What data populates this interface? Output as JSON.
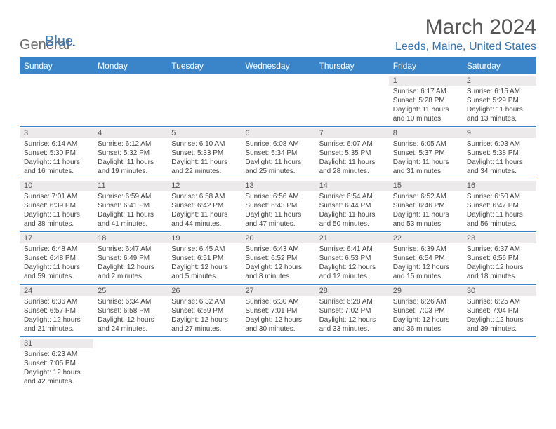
{
  "brand": {
    "general": "General",
    "blue": "Blue"
  },
  "title": "March 2024",
  "location": "Leeds, Maine, United States",
  "colors": {
    "header_bg": "#3a85c9",
    "header_text": "#ffffff",
    "accent": "#3474ad",
    "day_bg": "#eceaea",
    "text": "#444444"
  },
  "weekdays": [
    "Sunday",
    "Monday",
    "Tuesday",
    "Wednesday",
    "Thursday",
    "Friday",
    "Saturday"
  ],
  "weeks": [
    [
      null,
      null,
      null,
      null,
      null,
      {
        "n": "1",
        "sr": "6:17 AM",
        "ss": "5:28 PM",
        "dl": "11 hours and 10 minutes."
      },
      {
        "n": "2",
        "sr": "6:15 AM",
        "ss": "5:29 PM",
        "dl": "11 hours and 13 minutes."
      }
    ],
    [
      {
        "n": "3",
        "sr": "6:14 AM",
        "ss": "5:30 PM",
        "dl": "11 hours and 16 minutes."
      },
      {
        "n": "4",
        "sr": "6:12 AM",
        "ss": "5:32 PM",
        "dl": "11 hours and 19 minutes."
      },
      {
        "n": "5",
        "sr": "6:10 AM",
        "ss": "5:33 PM",
        "dl": "11 hours and 22 minutes."
      },
      {
        "n": "6",
        "sr": "6:08 AM",
        "ss": "5:34 PM",
        "dl": "11 hours and 25 minutes."
      },
      {
        "n": "7",
        "sr": "6:07 AM",
        "ss": "5:35 PM",
        "dl": "11 hours and 28 minutes."
      },
      {
        "n": "8",
        "sr": "6:05 AM",
        "ss": "5:37 PM",
        "dl": "11 hours and 31 minutes."
      },
      {
        "n": "9",
        "sr": "6:03 AM",
        "ss": "5:38 PM",
        "dl": "11 hours and 34 minutes."
      }
    ],
    [
      {
        "n": "10",
        "sr": "7:01 AM",
        "ss": "6:39 PM",
        "dl": "11 hours and 38 minutes."
      },
      {
        "n": "11",
        "sr": "6:59 AM",
        "ss": "6:41 PM",
        "dl": "11 hours and 41 minutes."
      },
      {
        "n": "12",
        "sr": "6:58 AM",
        "ss": "6:42 PM",
        "dl": "11 hours and 44 minutes."
      },
      {
        "n": "13",
        "sr": "6:56 AM",
        "ss": "6:43 PM",
        "dl": "11 hours and 47 minutes."
      },
      {
        "n": "14",
        "sr": "6:54 AM",
        "ss": "6:44 PM",
        "dl": "11 hours and 50 minutes."
      },
      {
        "n": "15",
        "sr": "6:52 AM",
        "ss": "6:46 PM",
        "dl": "11 hours and 53 minutes."
      },
      {
        "n": "16",
        "sr": "6:50 AM",
        "ss": "6:47 PM",
        "dl": "11 hours and 56 minutes."
      }
    ],
    [
      {
        "n": "17",
        "sr": "6:48 AM",
        "ss": "6:48 PM",
        "dl": "11 hours and 59 minutes."
      },
      {
        "n": "18",
        "sr": "6:47 AM",
        "ss": "6:49 PM",
        "dl": "12 hours and 2 minutes."
      },
      {
        "n": "19",
        "sr": "6:45 AM",
        "ss": "6:51 PM",
        "dl": "12 hours and 5 minutes."
      },
      {
        "n": "20",
        "sr": "6:43 AM",
        "ss": "6:52 PM",
        "dl": "12 hours and 8 minutes."
      },
      {
        "n": "21",
        "sr": "6:41 AM",
        "ss": "6:53 PM",
        "dl": "12 hours and 12 minutes."
      },
      {
        "n": "22",
        "sr": "6:39 AM",
        "ss": "6:54 PM",
        "dl": "12 hours and 15 minutes."
      },
      {
        "n": "23",
        "sr": "6:37 AM",
        "ss": "6:56 PM",
        "dl": "12 hours and 18 minutes."
      }
    ],
    [
      {
        "n": "24",
        "sr": "6:36 AM",
        "ss": "6:57 PM",
        "dl": "12 hours and 21 minutes."
      },
      {
        "n": "25",
        "sr": "6:34 AM",
        "ss": "6:58 PM",
        "dl": "12 hours and 24 minutes."
      },
      {
        "n": "26",
        "sr": "6:32 AM",
        "ss": "6:59 PM",
        "dl": "12 hours and 27 minutes."
      },
      {
        "n": "27",
        "sr": "6:30 AM",
        "ss": "7:01 PM",
        "dl": "12 hours and 30 minutes."
      },
      {
        "n": "28",
        "sr": "6:28 AM",
        "ss": "7:02 PM",
        "dl": "12 hours and 33 minutes."
      },
      {
        "n": "29",
        "sr": "6:26 AM",
        "ss": "7:03 PM",
        "dl": "12 hours and 36 minutes."
      },
      {
        "n": "30",
        "sr": "6:25 AM",
        "ss": "7:04 PM",
        "dl": "12 hours and 39 minutes."
      }
    ],
    [
      {
        "n": "31",
        "sr": "6:23 AM",
        "ss": "7:05 PM",
        "dl": "12 hours and 42 minutes."
      },
      null,
      null,
      null,
      null,
      null,
      null
    ]
  ],
  "labels": {
    "sunrise": "Sunrise:",
    "sunset": "Sunset:",
    "daylight": "Daylight:"
  }
}
